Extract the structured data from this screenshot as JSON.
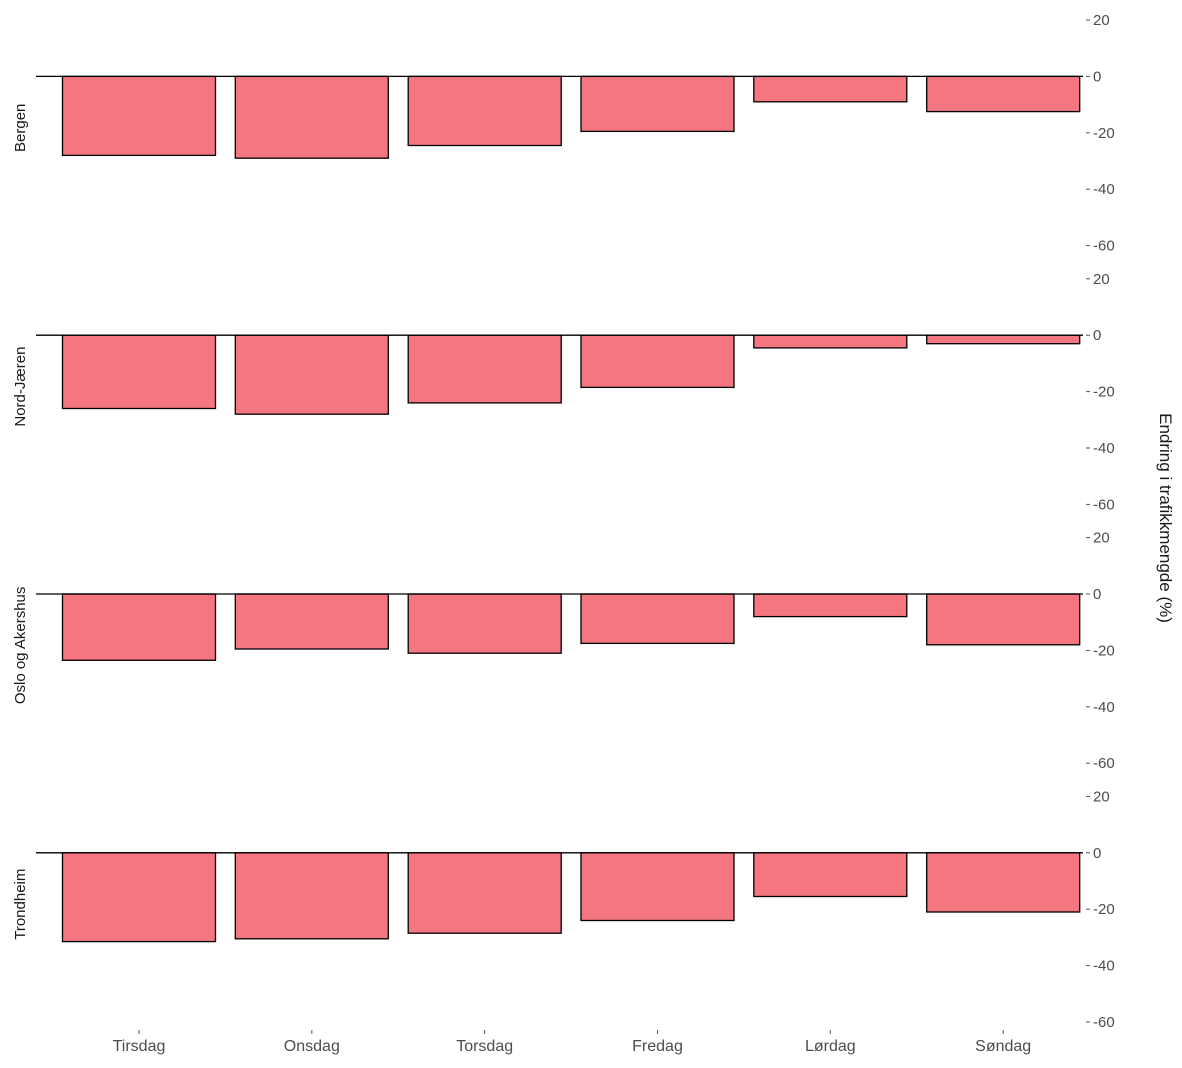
{
  "chart_data": {
    "type": "bar",
    "facet_by": "region",
    "categories": [
      "Tirsdag",
      "Onsdag",
      "Torsdag",
      "Fredag",
      "Lørdag",
      "Søndag"
    ],
    "ylabel": "Endring i trafikkmengde (%)",
    "ylim": [
      -60,
      20
    ],
    "yticks": [
      20,
      0,
      -20,
      -40,
      -60
    ],
    "ytick_labels": [
      "20",
      "0",
      "-20",
      "-40",
      "-60"
    ],
    "y_axis_position": "right",
    "zero_line": true,
    "grid": false,
    "bar_fill": "#F47680",
    "bar_stroke": "#000000",
    "facets": [
      {
        "name": "Bergen",
        "values": [
          -28,
          -29,
          -24.5,
          -19.5,
          -9,
          -12.5
        ]
      },
      {
        "name": "Nord-Jæren",
        "values": [
          -26,
          -28,
          -24,
          -18.5,
          -4.5,
          -3
        ]
      },
      {
        "name": "Oslo og Akershus",
        "values": [
          -23.5,
          -19.5,
          -21,
          -17.5,
          -8,
          -18
        ]
      },
      {
        "name": "Trondheim",
        "values": [
          -31.5,
          -30.5,
          -28.5,
          -24,
          -15.5,
          -21
        ]
      }
    ]
  }
}
